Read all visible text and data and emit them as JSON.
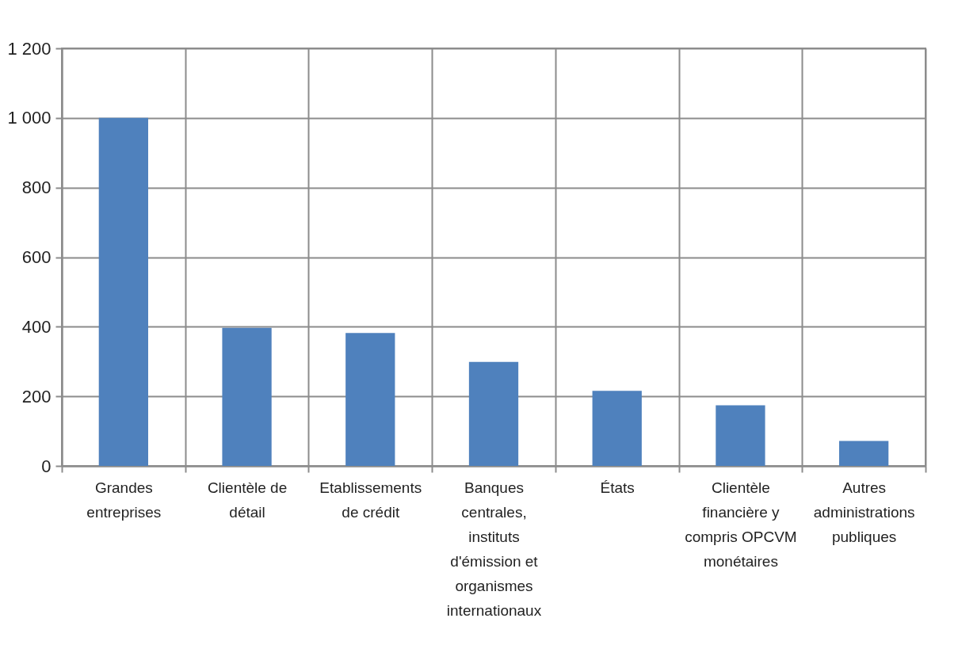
{
  "chart_data": {
    "type": "bar",
    "categories": [
      "Grandes entreprises",
      "Clientèle de détail",
      "Etablissements de crédit",
      "Banques centrales, instituts d'émission et organismes internationaux",
      "États",
      "Clientèle financière y compris OPCVM monétaires",
      "Autres administrations publiques"
    ],
    "values": [
      1000,
      397,
      382,
      299,
      216,
      174,
      72
    ],
    "color": "#4f81bd",
    "ylim": [
      0,
      1200
    ],
    "yticks": [
      0,
      200,
      400,
      600,
      800,
      {
        "value": 1000,
        "label": "1 000"
      },
      {
        "value": 1200,
        "label": "1 200"
      }
    ],
    "grid": true
  }
}
